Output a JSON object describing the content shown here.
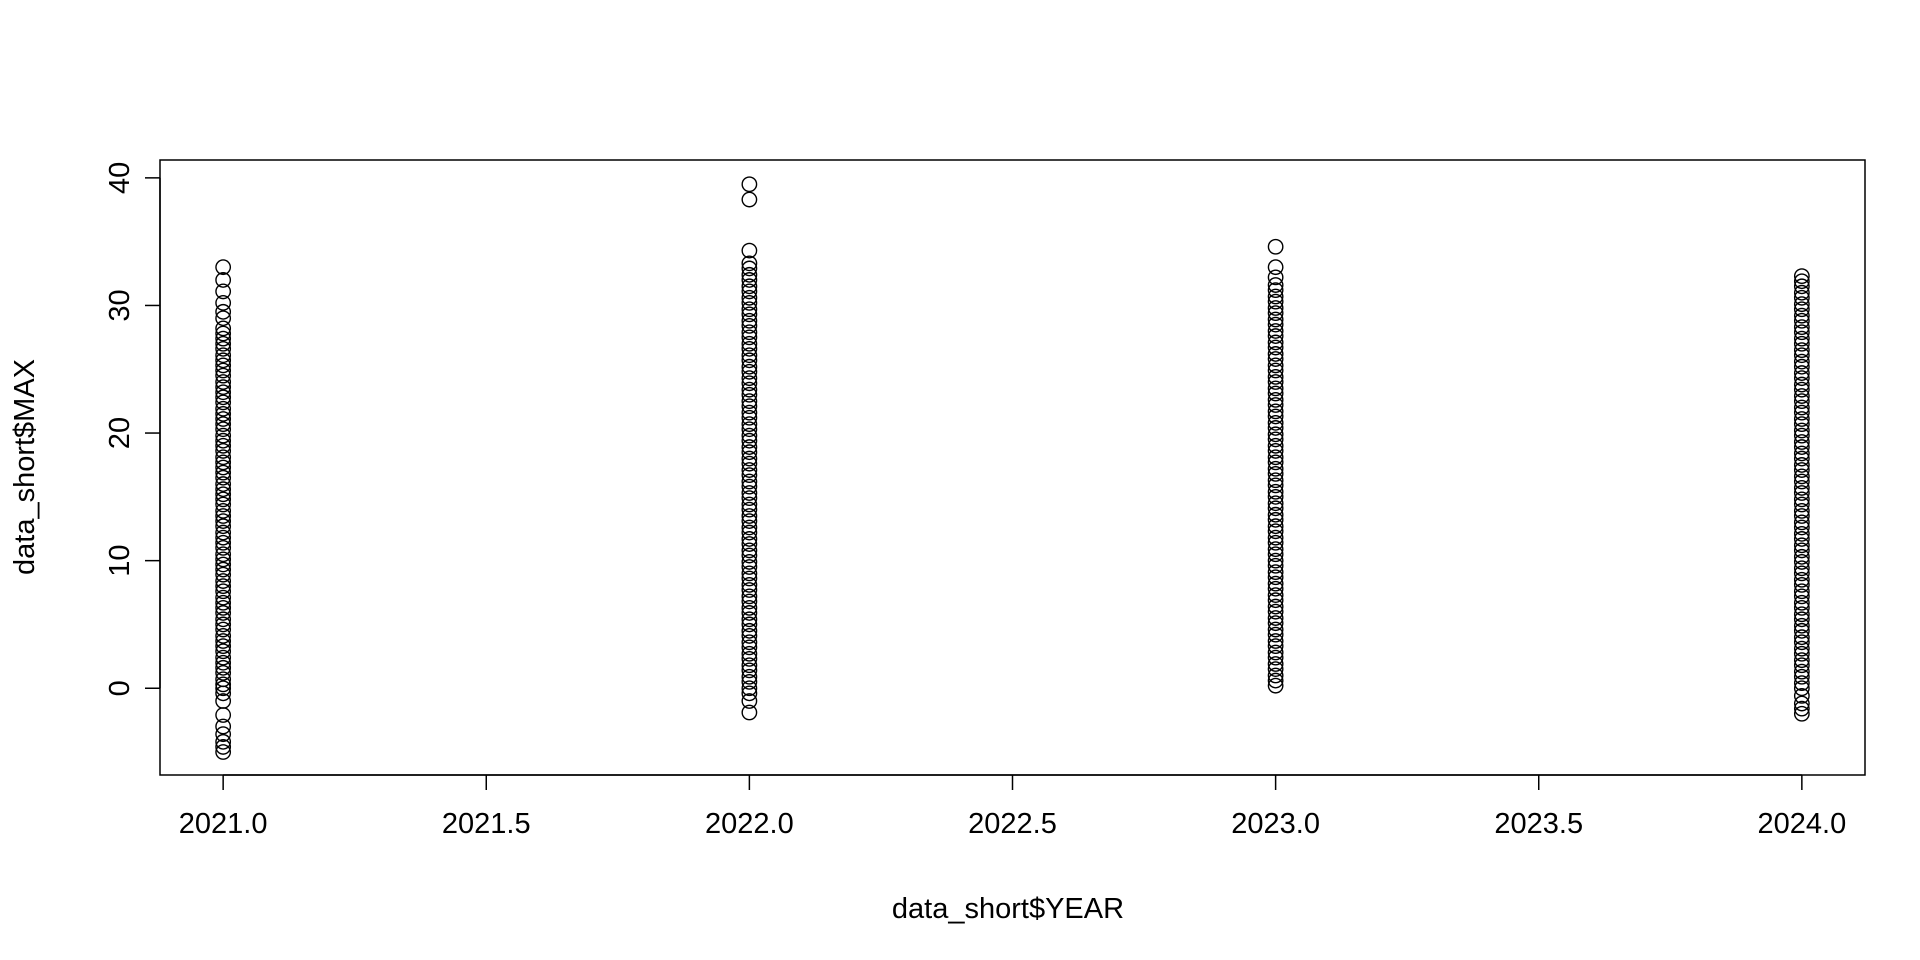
{
  "chart_data": {
    "type": "scatter",
    "title": "",
    "xlabel": "data_short$YEAR",
    "ylabel": "data_short$MAX",
    "xlim": [
      2020.88,
      2024.12
    ],
    "ylim": [
      -6.8,
      41.4
    ],
    "x_ticks": [
      2021.0,
      2021.5,
      2022.0,
      2022.5,
      2023.0,
      2023.5,
      2024.0
    ],
    "x_tick_labels": [
      "2021.0",
      "2021.5",
      "2022.0",
      "2022.5",
      "2023.0",
      "2023.5",
      "2024.0"
    ],
    "y_ticks": [
      0,
      10,
      20,
      30,
      40
    ],
    "y_tick_labels": [
      "0",
      "10",
      "20",
      "30",
      "40"
    ],
    "grid": false,
    "legend": "none",
    "marker": "open-circle",
    "colors": {
      "marker": "#000000",
      "axis": "#000000",
      "background": "#ffffff"
    },
    "series": [
      {
        "x": 2021,
        "values": [
          -5.0,
          -4.6,
          -4.2,
          -3.6,
          -3.0,
          -2.1,
          -1.0,
          -0.4,
          0.0,
          0.3,
          0.7,
          1.2,
          1.6,
          2.0,
          2.4,
          2.9,
          3.3,
          3.7,
          4.1,
          4.6,
          5.0,
          5.4,
          5.9,
          6.3,
          6.7,
          7.1,
          7.6,
          8.0,
          8.4,
          8.9,
          9.3,
          9.7,
          10.1,
          10.5,
          11.0,
          11.4,
          11.8,
          12.2,
          12.7,
          13.1,
          13.5,
          13.9,
          14.4,
          14.8,
          15.2,
          15.6,
          16.0,
          16.5,
          16.9,
          17.3,
          17.7,
          18.1,
          18.6,
          19.0,
          19.4,
          19.8,
          20.3,
          20.7,
          21.1,
          21.5,
          21.9,
          22.4,
          22.8,
          23.2,
          23.6,
          24.0,
          24.5,
          24.9,
          25.3,
          25.7,
          26.1,
          26.6,
          27.0,
          27.4,
          27.8,
          28.2,
          29.0,
          29.5,
          30.2,
          31.1,
          32.0,
          33.0
        ]
      },
      {
        "x": 2022,
        "values": [
          -1.9,
          -1.0,
          -0.4,
          0.0,
          0.5,
          0.9,
          1.4,
          1.8,
          2.3,
          2.7,
          3.2,
          3.6,
          4.1,
          4.5,
          5.0,
          5.4,
          5.9,
          6.3,
          6.8,
          7.2,
          7.7,
          8.1,
          8.6,
          9.0,
          9.5,
          9.9,
          10.4,
          10.8,
          11.3,
          11.7,
          12.2,
          12.6,
          13.1,
          13.5,
          14.0,
          14.4,
          14.9,
          15.3,
          15.8,
          16.2,
          16.7,
          17.1,
          17.6,
          18.0,
          18.5,
          18.9,
          19.4,
          19.8,
          20.3,
          20.7,
          21.2,
          21.6,
          22.1,
          22.5,
          23.0,
          23.4,
          23.9,
          24.3,
          24.8,
          25.2,
          25.7,
          26.1,
          26.6,
          27.0,
          27.5,
          27.9,
          28.4,
          28.8,
          29.3,
          29.7,
          30.2,
          30.6,
          31.1,
          31.5,
          32.0,
          32.4,
          32.9,
          33.3,
          34.3,
          38.3,
          39.5
        ]
      },
      {
        "x": 2023,
        "values": [
          0.2,
          0.6,
          1.0,
          1.5,
          1.9,
          2.4,
          2.8,
          3.3,
          3.7,
          4.2,
          4.6,
          5.1,
          5.5,
          6.0,
          6.4,
          6.9,
          7.3,
          7.8,
          8.2,
          8.7,
          9.1,
          9.6,
          10.0,
          10.5,
          10.9,
          11.4,
          11.8,
          12.3,
          12.7,
          13.2,
          13.6,
          14.1,
          14.5,
          15.0,
          15.4,
          15.9,
          16.3,
          16.8,
          17.2,
          17.7,
          18.1,
          18.6,
          19.0,
          19.5,
          19.9,
          20.4,
          20.8,
          21.3,
          21.7,
          22.2,
          22.6,
          23.1,
          23.5,
          24.0,
          24.4,
          24.9,
          25.3,
          25.8,
          26.2,
          26.7,
          27.1,
          27.6,
          28.0,
          28.5,
          28.9,
          29.4,
          29.8,
          30.3,
          30.7,
          31.2,
          31.6,
          32.2,
          33.0,
          34.6
        ]
      },
      {
        "x": 2024,
        "values": [
          -2.0,
          -1.6,
          -1.2,
          -0.6,
          0.0,
          0.4,
          0.9,
          1.3,
          1.8,
          2.2,
          2.7,
          3.1,
          3.6,
          4.0,
          4.5,
          4.9,
          5.4,
          5.8,
          6.3,
          6.7,
          7.2,
          7.6,
          8.1,
          8.5,
          9.0,
          9.4,
          9.9,
          10.3,
          10.8,
          11.2,
          11.7,
          12.1,
          12.6,
          13.0,
          13.5,
          13.9,
          14.4,
          14.8,
          15.3,
          15.7,
          16.2,
          16.6,
          17.1,
          17.5,
          18.0,
          18.4,
          18.9,
          19.3,
          19.8,
          20.2,
          20.7,
          21.1,
          21.6,
          22.0,
          22.5,
          22.9,
          23.4,
          23.8,
          24.3,
          24.7,
          25.2,
          25.6,
          26.1,
          26.5,
          27.0,
          27.4,
          27.9,
          28.3,
          28.8,
          29.2,
          29.7,
          30.1,
          30.6,
          31.0,
          31.5,
          31.9,
          32.3
        ]
      }
    ]
  }
}
